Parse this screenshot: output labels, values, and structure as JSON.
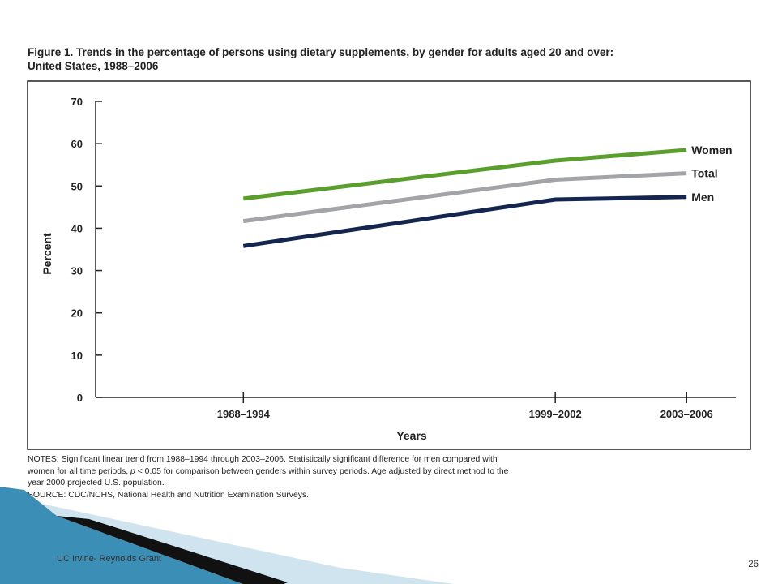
{
  "slide": {
    "footer_text": "UC Irvine- Reynolds Grant",
    "page_number": "26"
  },
  "figure": {
    "title_line1": "Figure 1. Trends in the percentage of persons using dietary supplements, by gender for adults aged 20 and over:",
    "title_line2": "United States, 1988–2006",
    "notes_line1": "NOTES: Significant linear trend from 1988–1994 through 2003–2006. Statistically significant difference for men compared with",
    "notes_line2_pre": "women for all time periods, ",
    "notes_line2_p": "p",
    "notes_line2_post": " < 0.05 for comparison between genders within survey periods. Age adjusted by direct method to the",
    "notes_line3": "year 2000 projected U.S. population.",
    "source": "SOURCE: CDC/NCHS, National Health and Nutrition Examination Surveys."
  },
  "chart_data": {
    "type": "line",
    "xlabel": "Years",
    "ylabel": "Percent",
    "categories": [
      "1988–1994",
      "1999–2002",
      "2003–2006"
    ],
    "x": [
      1991,
      2000.5,
      2004.5
    ],
    "xlim": [
      1986.5,
      2006
    ],
    "ylim": [
      0,
      70
    ],
    "yticks": [
      0,
      10,
      20,
      30,
      40,
      50,
      60,
      70
    ],
    "grid": false,
    "legend": "direct labels at line ends",
    "series": [
      {
        "name": "Women",
        "values": [
          47,
          56,
          58.5
        ],
        "color": "#5a9e2e"
      },
      {
        "name": "Total",
        "values": [
          41.7,
          51.5,
          53
        ],
        "color": "#a2a4a7"
      },
      {
        "name": "Men",
        "values": [
          35.8,
          46.8,
          47.4
        ],
        "color": "#14264f"
      }
    ]
  },
  "colors": {
    "frame": "#222222",
    "footer_blue": "#3b8fb6",
    "footer_light": "#cfe4ee",
    "footer_dark": "#111111"
  }
}
